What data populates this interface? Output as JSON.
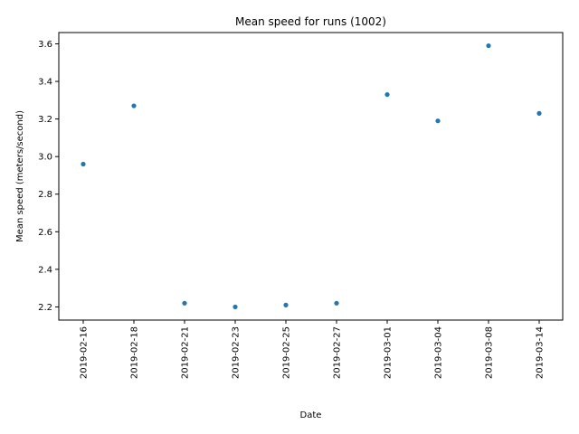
{
  "chart_data": {
    "type": "scatter",
    "title": "Mean speed for runs (1002)",
    "xlabel": "Date",
    "ylabel": "Mean speed (meters/second)",
    "categories": [
      "2019-02-16",
      "2019-02-18",
      "2019-02-21",
      "2019-02-23",
      "2019-02-25",
      "2019-02-27",
      "2019-03-01",
      "2019-03-04",
      "2019-03-08",
      "2019-03-14"
    ],
    "values": [
      2.96,
      3.27,
      2.22,
      2.2,
      2.21,
      2.22,
      3.33,
      3.19,
      3.59,
      3.23
    ],
    "ylim": [
      2.13,
      3.66
    ],
    "yticks": [
      "2.2",
      "2.4",
      "2.6",
      "2.8",
      "3.0",
      "3.2",
      "3.4",
      "3.6"
    ],
    "point_color": "#1f77b4",
    "grid": false
  }
}
